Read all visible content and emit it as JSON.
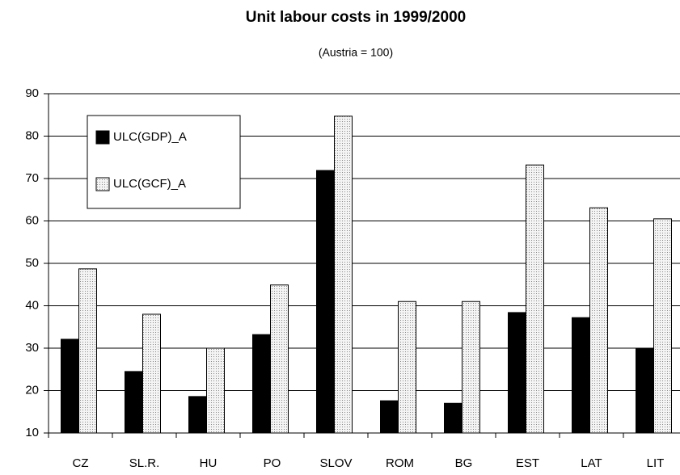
{
  "chart_data": {
    "type": "bar",
    "title": "Unit labour costs in 1999/2000",
    "subtitle": "(Austria = 100)",
    "categories": [
      "CZ",
      "SL.R.",
      "HU",
      "PO",
      "SLOV",
      "ROM",
      "BG",
      "EST",
      "LAT",
      "LIT"
    ],
    "series": [
      {
        "name": "ULC(GDP)_A",
        "color": "#000000",
        "values": [
          32.1,
          24.5,
          18.6,
          33.2,
          71.9,
          17.6,
          17,
          38.4,
          37.2,
          30
        ]
      },
      {
        "name": "ULC(GCF)_A",
        "color": "#dcdcdc",
        "values": [
          48.7,
          38,
          30,
          44.9,
          84.7,
          41,
          41,
          73.2,
          63.1,
          60.5
        ]
      }
    ],
    "ylim": [
      10,
      90
    ],
    "yticks": [
      10,
      20,
      30,
      40,
      50,
      60,
      70,
      80,
      90
    ],
    "grid": true,
    "legend": "upper left"
  }
}
